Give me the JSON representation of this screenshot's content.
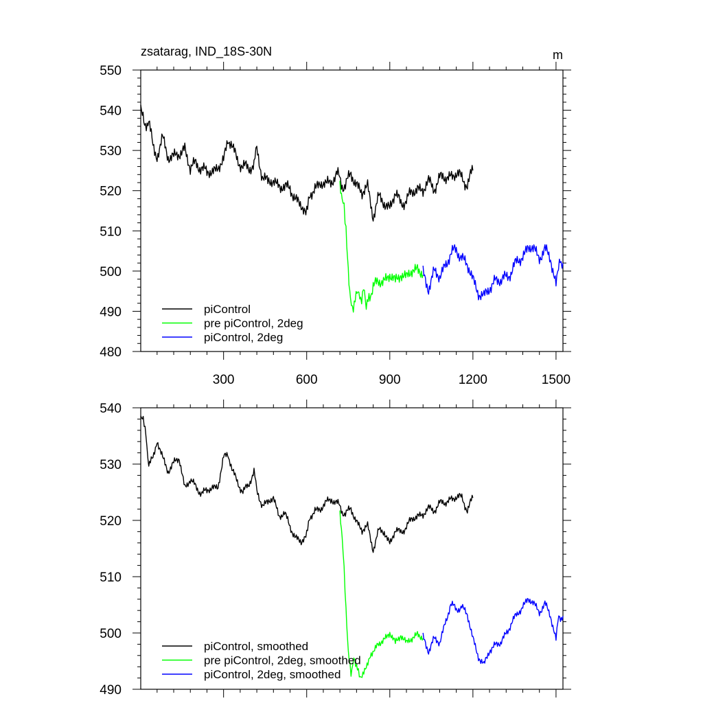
{
  "chart_data": [
    {
      "type": "line",
      "title": "zsatarag, IND_18S-30N",
      "units": "m",
      "xlim": [
        1,
        1525
      ],
      "ylim": [
        480,
        550
      ],
      "xticks": [
        300,
        600,
        900,
        1200,
        1500
      ],
      "xtick_labels": [
        "300",
        "600",
        "900",
        "1200",
        "1500"
      ],
      "yticks": [
        480,
        490,
        500,
        510,
        520,
        530,
        540,
        550
      ],
      "ytick_labels": [
        "480",
        "490",
        "500",
        "510",
        "520",
        "530",
        "540",
        "550"
      ],
      "legend_position": "lower-left",
      "series": [
        {
          "name": "piControl",
          "color": "#000000",
          "x": [
            1,
            15,
            30,
            45,
            60,
            80,
            100,
            120,
            140,
            160,
            180,
            200,
            220,
            240,
            260,
            280,
            300,
            315,
            330,
            350,
            370,
            390,
            410,
            420,
            440,
            460,
            480,
            500,
            520,
            540,
            560,
            580,
            597,
            610,
            630,
            650,
            670,
            690,
            710,
            725,
            740,
            760,
            780,
            800,
            820,
            840,
            860,
            880,
            900,
            920,
            940,
            960,
            980,
            1000,
            1020,
            1040,
            1060,
            1080,
            1100,
            1120,
            1140,
            1160,
            1180,
            1200
          ],
          "y": [
            540,
            536,
            538,
            531,
            528,
            533,
            529,
            528,
            529,
            531,
            525,
            527,
            526,
            524,
            525,
            526,
            527,
            533,
            531,
            528,
            526,
            525,
            527,
            530,
            524,
            522,
            522,
            522,
            520,
            521,
            518,
            516,
            514,
            518,
            521,
            522,
            521,
            523,
            524,
            522,
            521,
            524,
            522,
            519,
            521,
            514,
            518,
            517,
            516,
            519,
            517,
            518,
            519,
            521,
            520,
            522,
            521,
            523,
            523,
            524,
            524,
            523,
            522,
            525
          ]
        },
        {
          "name": "pre piControl, 2deg",
          "color": "#00ff00",
          "x": [
            720,
            728,
            735,
            742,
            750,
            758,
            765,
            775,
            785,
            795,
            805,
            815,
            825,
            840,
            860,
            880,
            900,
            920,
            940,
            960,
            980,
            1000,
            1020
          ],
          "y": [
            523,
            518,
            515,
            510,
            501,
            494,
            490,
            492,
            496,
            493,
            495,
            491,
            494,
            496,
            497,
            498,
            499,
            497,
            500,
            498,
            500,
            501,
            499
          ]
        },
        {
          "name": "piControl, 2deg",
          "color": "#0000ff",
          "x": [
            1020,
            1040,
            1060,
            1080,
            1100,
            1120,
            1140,
            1160,
            1180,
            1200,
            1220,
            1240,
            1260,
            1280,
            1300,
            1320,
            1340,
            1360,
            1380,
            1400,
            1420,
            1440,
            1460,
            1480,
            1500,
            1515,
            1525
          ],
          "y": [
            499,
            496,
            500,
            498,
            502,
            504,
            505,
            504,
            501,
            498,
            495,
            493,
            496,
            498,
            497,
            499,
            500,
            502,
            504,
            506,
            505,
            504,
            505,
            503,
            497,
            503,
            502
          ]
        }
      ]
    },
    {
      "type": "line",
      "title": "",
      "xlim": [
        1,
        1525
      ],
      "ylim": [
        490,
        540
      ],
      "xticks": [
        300,
        600,
        900,
        1200,
        1500
      ],
      "yticks": [
        490,
        500,
        510,
        520,
        530,
        540
      ],
      "ytick_labels": [
        "490",
        "500",
        "510",
        "520",
        "530",
        "540"
      ],
      "legend_position": "lower-left",
      "series": [
        {
          "name": "piControl, smoothed",
          "color": "#000000",
          "x": [
            1,
            10,
            20,
            30,
            45,
            60,
            80,
            100,
            120,
            140,
            160,
            180,
            200,
            220,
            240,
            260,
            280,
            300,
            315,
            330,
            350,
            370,
            390,
            410,
            420,
            440,
            460,
            480,
            500,
            520,
            540,
            560,
            580,
            597,
            610,
            630,
            650,
            670,
            690,
            710,
            725,
            740,
            760,
            780,
            800,
            820,
            840,
            860,
            880,
            900,
            920,
            940,
            960,
            980,
            1000,
            1020,
            1040,
            1060,
            1080,
            1100,
            1120,
            1140,
            1160,
            1180,
            1200
          ],
          "y": [
            538,
            538,
            535,
            530,
            531,
            534,
            531,
            529,
            530,
            531,
            526,
            527,
            526,
            525,
            525,
            526,
            526,
            531,
            532,
            529,
            527,
            525,
            526,
            529,
            525,
            523,
            523,
            524,
            521,
            521,
            519,
            517,
            516,
            517,
            520,
            522,
            522,
            523,
            524,
            523,
            522,
            521,
            522,
            520,
            518,
            519,
            515,
            518,
            518,
            516,
            518,
            518,
            519,
            520,
            521,
            521,
            522,
            522,
            523,
            523,
            524,
            524,
            524,
            522,
            524
          ]
        },
        {
          "name": "pre piControl, 2deg, smoothed",
          "color": "#00ff00",
          "x": [
            720,
            728,
            735,
            742,
            750,
            760,
            770,
            780,
            790,
            800,
            815,
            830,
            845,
            860,
            880,
            900,
            920,
            940,
            960,
            980,
            1000,
            1020
          ],
          "y": [
            522,
            517,
            511,
            504,
            497,
            493,
            495,
            494,
            493,
            492,
            494,
            496,
            497,
            498,
            499,
            500,
            498,
            500,
            498,
            499,
            500,
            499
          ]
        },
        {
          "name": "piControl, 2deg, smoothed",
          "color": "#0000ff",
          "x": [
            1020,
            1040,
            1060,
            1080,
            1100,
            1120,
            1140,
            1160,
            1180,
            1200,
            1220,
            1240,
            1260,
            1280,
            1300,
            1320,
            1340,
            1360,
            1380,
            1400,
            1420,
            1440,
            1460,
            1480,
            1500,
            1510,
            1525
          ],
          "y": [
            499,
            497,
            499,
            498,
            502,
            505,
            504,
            505,
            503,
            499,
            496,
            494,
            497,
            498,
            498,
            500,
            502,
            503,
            505,
            506,
            505,
            504,
            505,
            503,
            499,
            503,
            503
          ]
        }
      ]
    }
  ]
}
